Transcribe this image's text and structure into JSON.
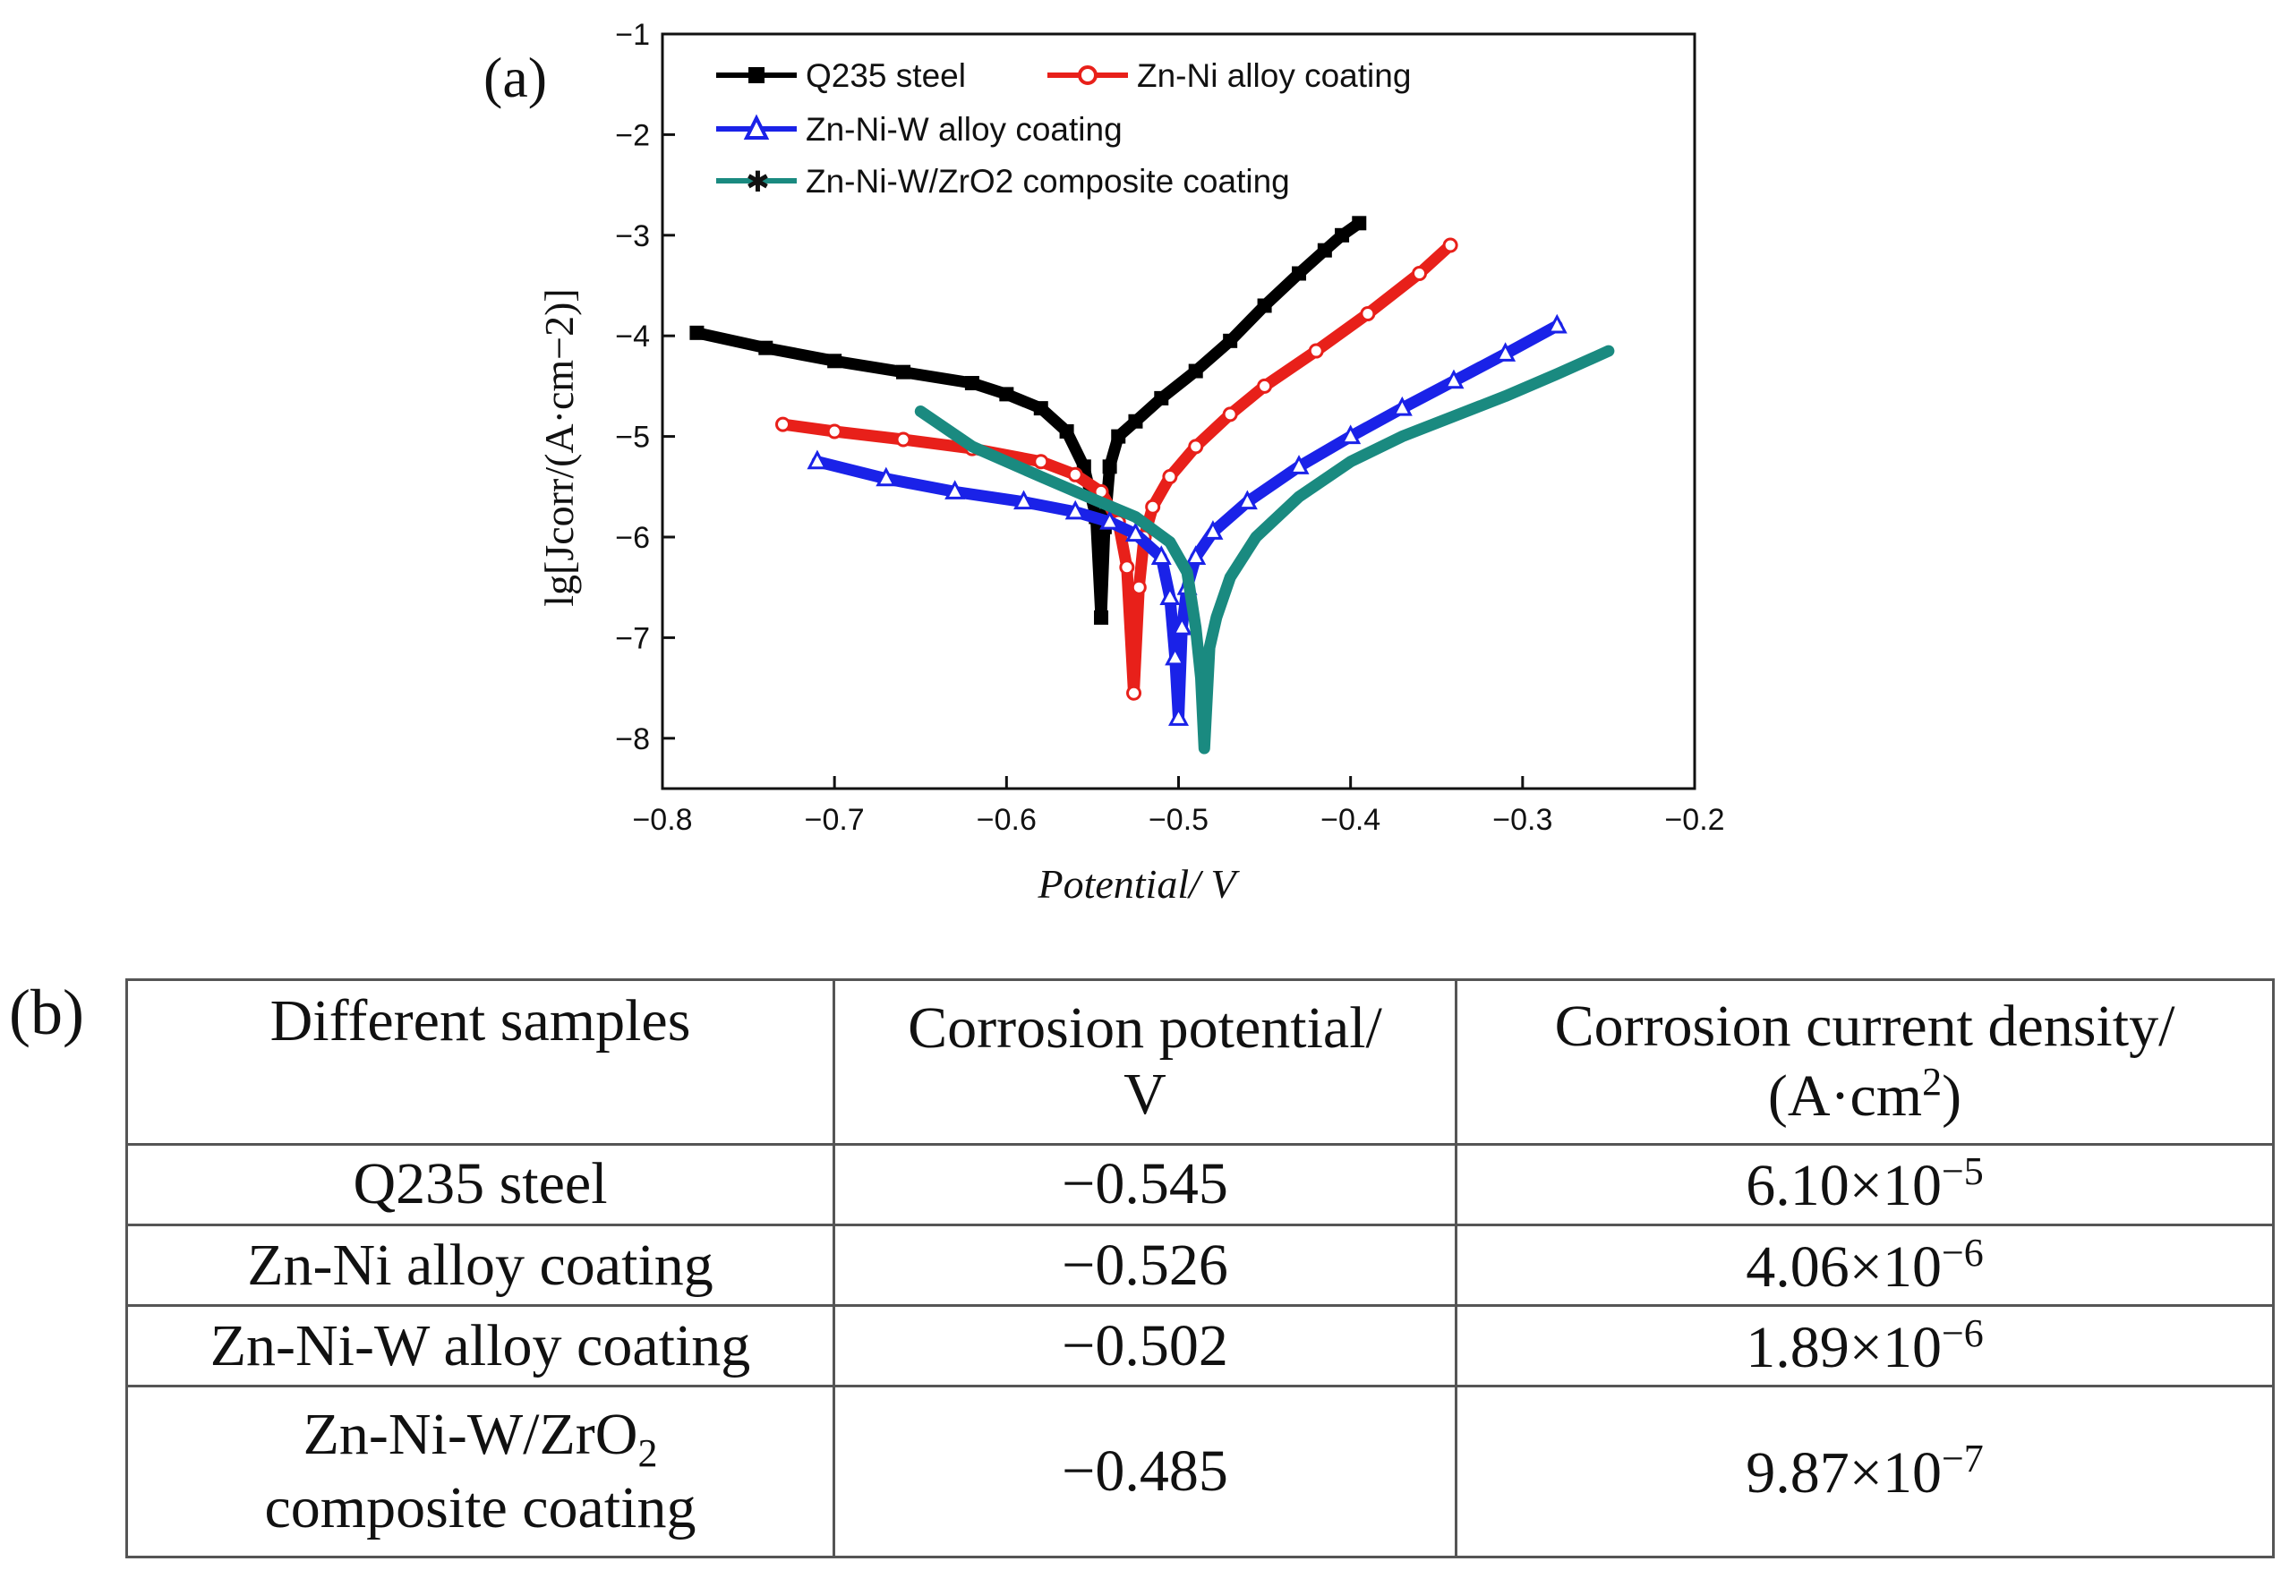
{
  "figure": {
    "panel_a_label": "(a)",
    "panel_b_label": "(b)"
  },
  "chart_data": {
    "type": "line",
    "title": "",
    "xlabel": "Potential/ V",
    "ylabel": "lg[Jcorr/(A·cm−2)]",
    "xlim": [
      -0.8,
      -0.2
    ],
    "ylim": [
      -8.5,
      -1
    ],
    "xticks": [
      -0.8,
      -0.7,
      -0.6,
      -0.5,
      -0.4,
      -0.3,
      -0.2
    ],
    "xtick_labels": [
      "−0.8",
      "−0.7",
      "−0.6",
      "−0.5",
      "−0.4",
      "−0.3",
      "−0.2"
    ],
    "yticks": [
      -8,
      -7,
      -6,
      -5,
      -4,
      -3,
      -2,
      -1
    ],
    "ytick_labels": [
      "−8",
      "−7",
      "−6",
      "−5",
      "−4",
      "−3",
      "−2",
      "−1"
    ],
    "grid": false,
    "legend_position": "top",
    "series": [
      {
        "name": "Q235 steel",
        "color": "#000000",
        "marker": "square",
        "x": [
          -0.78,
          -0.74,
          -0.7,
          -0.66,
          -0.62,
          -0.6,
          -0.58,
          -0.565,
          -0.555,
          -0.548,
          -0.545,
          -0.543,
          -0.54,
          -0.535,
          -0.525,
          -0.51,
          -0.49,
          -0.47,
          -0.45,
          -0.43,
          -0.415,
          -0.405,
          -0.395
        ],
        "y": [
          -3.97,
          -4.12,
          -4.25,
          -4.36,
          -4.47,
          -4.58,
          -4.72,
          -4.95,
          -5.3,
          -5.8,
          -6.8,
          -5.9,
          -5.3,
          -5.0,
          -4.85,
          -4.62,
          -4.35,
          -4.05,
          -3.7,
          -3.38,
          -3.15,
          -3.0,
          -2.88
        ]
      },
      {
        "name": "Zn-Ni alloy coating",
        "color": "#e8201a",
        "marker": "circle",
        "x": [
          -0.73,
          -0.7,
          -0.66,
          -0.62,
          -0.58,
          -0.56,
          -0.545,
          -0.535,
          -0.53,
          -0.526,
          -0.523,
          -0.52,
          -0.515,
          -0.505,
          -0.49,
          -0.47,
          -0.45,
          -0.42,
          -0.39,
          -0.36,
          -0.342
        ],
        "y": [
          -4.88,
          -4.95,
          -5.03,
          -5.12,
          -5.25,
          -5.38,
          -5.55,
          -5.85,
          -6.3,
          -7.55,
          -6.5,
          -6.0,
          -5.7,
          -5.4,
          -5.1,
          -4.78,
          -4.5,
          -4.15,
          -3.78,
          -3.38,
          -3.1
        ]
      },
      {
        "name": "Zn-Ni-W alloy coating",
        "color": "#1a22e8",
        "marker": "triangle",
        "x": [
          -0.71,
          -0.67,
          -0.63,
          -0.59,
          -0.56,
          -0.54,
          -0.525,
          -0.51,
          -0.505,
          -0.502,
          -0.5,
          -0.498,
          -0.495,
          -0.49,
          -0.48,
          -0.46,
          -0.43,
          -0.4,
          -0.37,
          -0.34,
          -0.31,
          -0.28
        ],
        "y": [
          -5.25,
          -5.42,
          -5.55,
          -5.65,
          -5.75,
          -5.85,
          -5.97,
          -6.2,
          -6.6,
          -7.2,
          -7.8,
          -6.9,
          -6.5,
          -6.2,
          -5.95,
          -5.65,
          -5.3,
          -5.0,
          -4.72,
          -4.45,
          -4.18,
          -3.9
        ]
      },
      {
        "name": "Zn-Ni-W/ZrO2 composite coating",
        "color": "#1a8a80",
        "marker": "star",
        "x": [
          -0.65,
          -0.62,
          -0.58,
          -0.55,
          -0.525,
          -0.505,
          -0.495,
          -0.49,
          -0.487,
          -0.485,
          -0.482,
          -0.478,
          -0.47,
          -0.455,
          -0.43,
          -0.4,
          -0.37,
          -0.34,
          -0.31,
          -0.28,
          -0.25
        ],
        "y": [
          -4.75,
          -5.1,
          -5.4,
          -5.62,
          -5.8,
          -6.05,
          -6.35,
          -6.9,
          -7.4,
          -8.1,
          -7.1,
          -6.8,
          -6.4,
          -6.0,
          -5.6,
          -5.25,
          -5.0,
          -4.8,
          -4.6,
          -4.38,
          -4.15
        ]
      }
    ]
  },
  "table": {
    "headers": [
      {
        "line1": "Different samples",
        "line2": ""
      },
      {
        "line1": "Corrosion potential/",
        "line2": "V"
      },
      {
        "line1": "Corrosion current density/",
        "line2_pre": "(A·cm",
        "line2_exp": "2",
        "line2_post": ")"
      }
    ],
    "rows": [
      {
        "sample_line1": "Q235 steel",
        "sample_line2": "",
        "potential": "−0.545",
        "density_mantissa": "6.10×10",
        "density_exponent": "−5"
      },
      {
        "sample_line1": "Zn-Ni alloy coating",
        "sample_line2": "",
        "potential": "−0.526",
        "density_mantissa": "4.06×10",
        "density_exponent": "−6"
      },
      {
        "sample_line1": "Zn-Ni-W alloy coating",
        "sample_line2": "",
        "potential": "−0.502",
        "density_mantissa": "1.89×10",
        "density_exponent": "−6"
      },
      {
        "sample_line1_pre": "Zn-Ni-W/ZrO",
        "sample_line1_sub": "2",
        "sample_line2": "composite coating",
        "potential": "−0.485",
        "density_mantissa": "9.87×10",
        "density_exponent": "−7"
      }
    ]
  }
}
